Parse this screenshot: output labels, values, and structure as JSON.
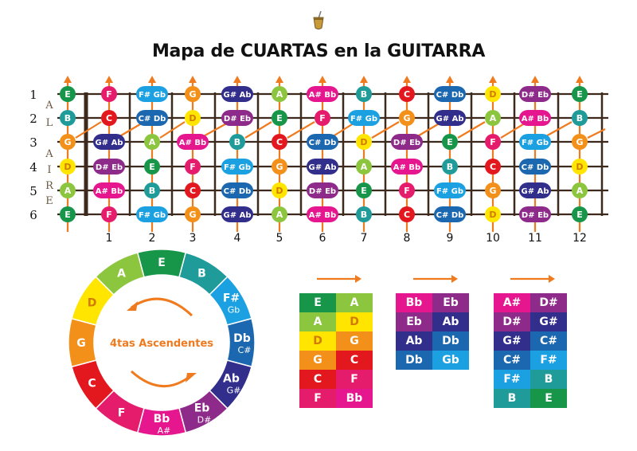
{
  "title": "Mapa de CUARTAS en la GUITARRA",
  "strings": [
    "1",
    "2",
    "3",
    "4",
    "5",
    "6"
  ],
  "frets": [
    "1",
    "2",
    "3",
    "4",
    "5",
    "6",
    "7",
    "8",
    "9",
    "10",
    "11",
    "12"
  ],
  "side_label": [
    "A",
    "L",
    "A",
    "I",
    "R",
    "E"
  ],
  "colors": {
    "E": "#17964a",
    "F": "#e51c6b",
    "F#": "#1ba1e2",
    "G": "#f39019",
    "G#": "#322e8c",
    "A": "#8cc63e",
    "A#": "#e5168e",
    "B": "#1f9c9a",
    "C": "#e3181f",
    "C#": "#1b67b0",
    "D": "#ffe500",
    "D#": "#8e2a8a",
    "wood": "#3d2a1c",
    "arrow": "#f07a1e"
  },
  "fretboard": [
    [
      "E",
      "F",
      "F# Gb",
      "G",
      "G# Ab",
      "A",
      "A# Bb",
      "B",
      "C",
      "C# Db",
      "D",
      "D# Eb",
      "E"
    ],
    [
      "B",
      "C",
      "C# Db",
      "D",
      "D# Eb",
      "E",
      "F",
      "F# Gb",
      "G",
      "G# Ab",
      "A",
      "A# Bb",
      "B"
    ],
    [
      "G",
      "G# Ab",
      "A",
      "A# Bb",
      "B",
      "C",
      "C# Db",
      "D",
      "D# Eb",
      "E",
      "F",
      "F# Gb",
      "G"
    ],
    [
      "D",
      "D# Eb",
      "E",
      "F",
      "F# Gb",
      "G",
      "G# Ab",
      "A",
      "A# Bb",
      "B",
      "C",
      "C# Db",
      "D"
    ],
    [
      "A",
      "A# Bb",
      "B",
      "C",
      "C# Db",
      "D",
      "D# Eb",
      "E",
      "F",
      "F# Gb",
      "G",
      "G# Ab",
      "A"
    ],
    [
      "E",
      "F",
      "F# Gb",
      "G",
      "G# Ab",
      "A",
      "A# Bb",
      "B",
      "C",
      "C# Db",
      "D",
      "D# Eb",
      "E"
    ]
  ],
  "circle": {
    "center_label": "4tas Ascendentes",
    "segments": [
      {
        "note": "E",
        "color": "E"
      },
      {
        "note": "B",
        "color": "B"
      },
      {
        "note": "F#",
        "alt": "Gb",
        "color": "F#"
      },
      {
        "note": "Db",
        "alt": "C#",
        "color": "C#"
      },
      {
        "note": "Ab",
        "alt": "G#",
        "color": "G#"
      },
      {
        "note": "Eb",
        "alt": "D#",
        "color": "D#"
      },
      {
        "note": "Bb",
        "alt": "A#",
        "color": "A#"
      },
      {
        "note": "F",
        "color": "F"
      },
      {
        "note": "C",
        "color": "C"
      },
      {
        "note": "G",
        "color": "G"
      },
      {
        "note": "D",
        "color": "D"
      },
      {
        "note": "A",
        "color": "A"
      }
    ]
  },
  "tables": [
    [
      [
        "E",
        "A"
      ],
      [
        "A",
        "D"
      ],
      [
        "D",
        "G"
      ],
      [
        "G",
        "C"
      ],
      [
        "C",
        "F"
      ],
      [
        "F",
        "Bb"
      ]
    ],
    [
      [
        "Bb",
        "Eb"
      ],
      [
        "Eb",
        "Ab"
      ],
      [
        "Ab",
        "Db"
      ],
      [
        "Db",
        "Gb"
      ]
    ],
    [
      [
        "A#",
        "D#"
      ],
      [
        "D#",
        "G#"
      ],
      [
        "G#",
        "C#"
      ],
      [
        "C#",
        "F#"
      ],
      [
        "F#",
        "B"
      ],
      [
        "B",
        "E"
      ]
    ]
  ]
}
